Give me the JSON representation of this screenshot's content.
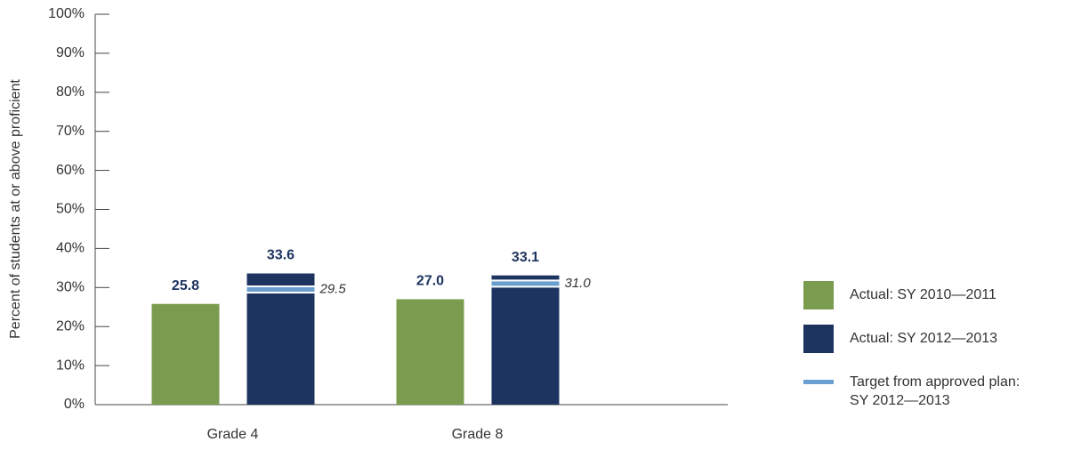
{
  "chart_data": {
    "type": "bar",
    "y_axis_label": "Percent of students at or above proficient",
    "categories": [
      "Grade 4",
      "Grade 8"
    ],
    "series": [
      {
        "name": "Actual: SY 2010—2011",
        "color": "#7a9c4f",
        "values": [
          25.8,
          27.0
        ],
        "value_labels": [
          "25.8",
          "27.0"
        ]
      },
      {
        "name": "Actual: SY 2012—2013",
        "color": "#1d3461",
        "values": [
          33.6,
          33.1
        ],
        "value_labels": [
          "33.6",
          "33.1"
        ]
      }
    ],
    "target": {
      "name": "Target from approved plan: SY 2012—2013",
      "color": "#6a9fd0",
      "values": [
        29.5,
        31.0
      ],
      "value_labels": [
        "29.5",
        "31.0"
      ]
    },
    "ylim": [
      0,
      100
    ],
    "yticks": [
      {
        "value": 0,
        "label": "0%"
      },
      {
        "value": 10,
        "label": "10%"
      },
      {
        "value": 20,
        "label": "20%"
      },
      {
        "value": 30,
        "label": "30%"
      },
      {
        "value": 40,
        "label": "40%"
      },
      {
        "value": 50,
        "label": "50%"
      },
      {
        "value": 60,
        "label": "60%"
      },
      {
        "value": 70,
        "label": "70%"
      },
      {
        "value": 80,
        "label": "80%"
      },
      {
        "value": 90,
        "label": "90%"
      },
      {
        "value": 100,
        "label": "100%"
      }
    ],
    "legend": "right"
  }
}
